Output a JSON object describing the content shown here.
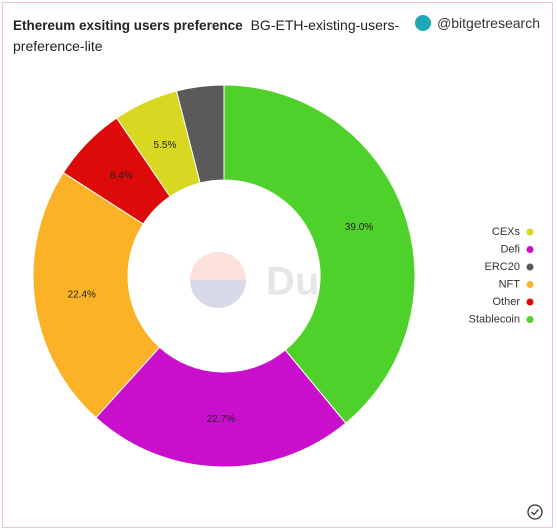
{
  "header": {
    "title": "Ethereum exsiting users preference",
    "query": "BG-ETH-existing-users-preference-lite",
    "handle": "@bitgetresearch"
  },
  "chart_data": {
    "type": "donut",
    "categories": [
      "Stablecoin",
      "Defi",
      "NFT",
      "Other",
      "CEXs",
      "ERC20"
    ],
    "values": [
      39.0,
      22.7,
      22.4,
      6.4,
      5.5,
      4.0
    ],
    "value_labels": [
      "39.0%",
      "22.7%",
      "22.4%",
      "6.4%",
      "5.5%",
      null
    ],
    "colors": [
      "#4fd12b",
      "#c90fcb",
      "#fbb226",
      "#dd0a0a",
      "#d8d823",
      "#5a5a5a"
    ],
    "legend": [
      "CEXs",
      "Defi",
      "ERC20",
      "NFT",
      "Other",
      "Stablecoin"
    ],
    "watermark": "Dune"
  }
}
